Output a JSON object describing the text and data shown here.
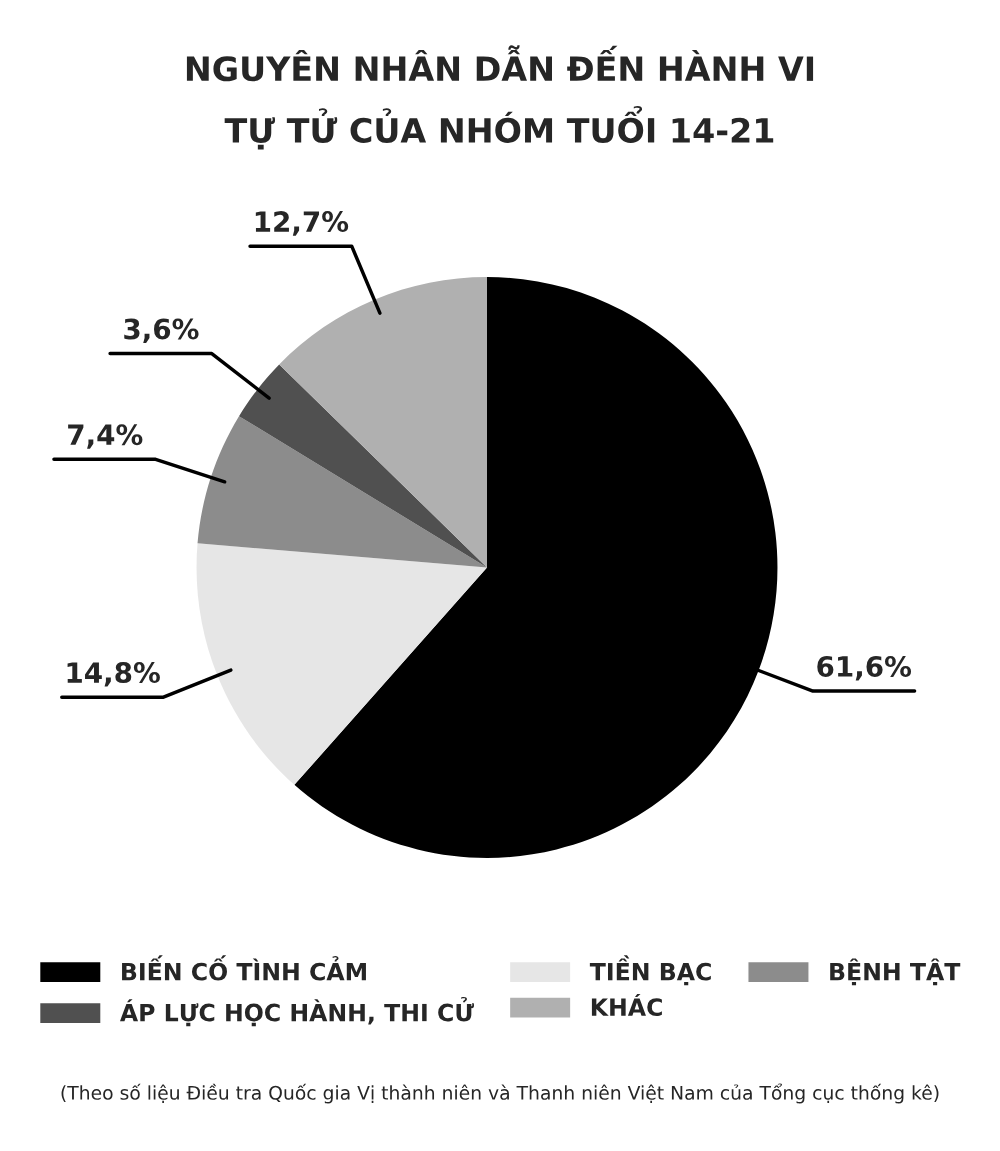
{
  "chart_data": {
    "type": "pie",
    "title": "NGUYÊN NHÂN DẪN ĐẾN HÀNH VI\nTỰ TỬ CỦA NHÓM TUỔI 14-21",
    "categories": [
      "BIẾN CỐ TÌNH CẢM",
      "TIỀN BẠC",
      "BỆNH TẬT",
      "ÁP LỰC HỌC HÀNH, THI CỬ",
      "KHÁC"
    ],
    "values": [
      61.6,
      14.8,
      7.4,
      3.6,
      12.7
    ],
    "value_labels": [
      "61,6%",
      "14,8%",
      "7,4%",
      "3,6%",
      "12,7%"
    ],
    "colors": [
      "#000000",
      "#e6e6e6",
      "#8c8c8c",
      "#505050",
      "#b0b0b0"
    ],
    "legend": "bottom",
    "annotations": [
      "(Theo số liệu Điều tra Quốc gia Vị thành niên và Thanh niên Việt Nam của Tổng cục thống kê)"
    ]
  }
}
